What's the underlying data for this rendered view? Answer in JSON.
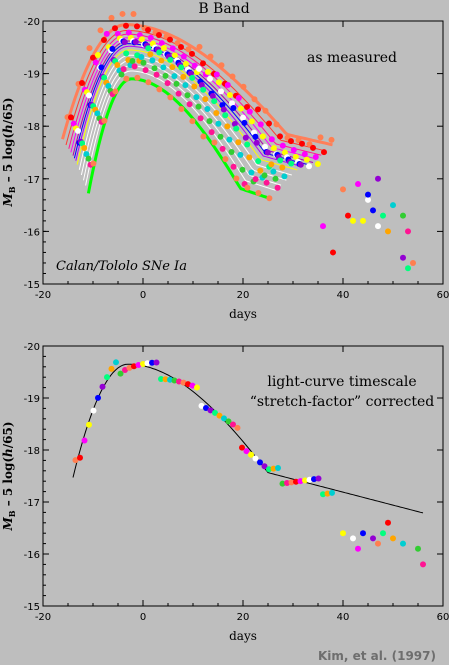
{
  "title": "B Band",
  "credit": "Kim, et al. (1997)",
  "colors": {
    "background": "#bebebe",
    "curve_colors": [
      "#ff7f5a",
      "#ff3b30",
      "#ff1493",
      "#ff00ff",
      "#b000b0",
      "#0000ff",
      "#b000ff",
      "#ffff00",
      "#ffffff",
      "#ffffff",
      "#ffffff",
      "#ffffff",
      "#00ff00"
    ],
    "point_colors": [
      "#ff7f50",
      "#ff0000",
      "#ff00ff",
      "#ffff00",
      "#ffffff",
      "#0000ff",
      "#9400d3",
      "#00ff7f",
      "#ffa500",
      "#00ced1",
      "#32cd32",
      "#ff1493"
    ]
  },
  "chart_data": [
    {
      "type": "scatter",
      "annotation_title": "as measured",
      "annotation_subtitle": "Calan/Tololo SNe Ia",
      "xlabel": "days",
      "ylabel": "M_B – 5 log(h/65)",
      "ylabel_parts": {
        "main": "M",
        "sub": "B",
        "rest": " – 5 log(",
        "h": "h",
        "tail": "/65)"
      },
      "xlim": [
        -20,
        60
      ],
      "ylim": [
        -15,
        -20
      ],
      "xticks": [
        -20,
        0,
        20,
        40,
        60
      ],
      "yticks": [
        -15,
        -16,
        -17,
        -18,
        -19,
        -20
      ],
      "xtick_labels": [
        "-20",
        "0",
        "20",
        "40",
        "60"
      ],
      "ytick_labels": [
        "-15",
        "-16",
        "-17",
        "-18",
        "-19",
        "-20"
      ],
      "curves": {
        "peaks": [
          -19.93,
          -19.82,
          -19.75,
          -19.68,
          -19.62,
          -19.57,
          -19.52,
          -19.45,
          -19.35,
          -19.25,
          -19.15,
          -19.05,
          -18.9
        ],
        "stretch": [
          1.15,
          1.1,
          1.06,
          1.03,
          1.0,
          0.98,
          0.96,
          0.94,
          0.91,
          0.88,
          0.85,
          0.82,
          0.78
        ],
        "end_day": [
          38,
          37,
          36,
          35,
          34,
          33,
          32,
          31,
          30,
          29,
          28,
          27,
          26
        ]
      },
      "late_points": [
        {
          "x": 40,
          "y": -16.8
        },
        {
          "x": 41,
          "y": -16.3
        },
        {
          "x": 43,
          "y": -16.9
        },
        {
          "x": 44,
          "y": -16.2
        },
        {
          "x": 45,
          "y": -16.6
        },
        {
          "x": 46,
          "y": -16.4
        },
        {
          "x": 47,
          "y": -17.0
        },
        {
          "x": 48,
          "y": -16.3
        },
        {
          "x": 49,
          "y": -16.0
        },
        {
          "x": 50,
          "y": -16.5
        },
        {
          "x": 52,
          "y": -16.3
        },
        {
          "x": 53,
          "y": -16.0
        },
        {
          "x": 54,
          "y": -15.4
        },
        {
          "x": 38,
          "y": -15.6
        },
        {
          "x": 36,
          "y": -16.1
        },
        {
          "x": 42,
          "y": -16.2
        },
        {
          "x": 47,
          "y": -16.1
        },
        {
          "x": 45,
          "y": -16.7
        },
        {
          "x": 52,
          "y": -15.5
        },
        {
          "x": 53,
          "y": -15.3
        }
      ]
    },
    {
      "type": "scatter",
      "annotation_title": "light-curve timescale",
      "annotation_subtitle": "“stretch-factor” corrected",
      "xlabel": "days",
      "ylabel": "M_B – 5 log(h/65)",
      "ylabel_parts": {
        "main": "M",
        "sub": "B",
        "rest": " – 5 log(",
        "h": "h",
        "tail": "/65)"
      },
      "xlim": [
        -20,
        60
      ],
      "ylim": [
        -15,
        -20
      ],
      "xticks": [
        -20,
        0,
        20,
        40,
        60
      ],
      "yticks": [
        -15,
        -16,
        -17,
        -18,
        -19,
        -20
      ],
      "xtick_labels": [
        "-20",
        "0",
        "20",
        "40",
        "60"
      ],
      "ytick_labels": [
        "-15",
        "-16",
        "-17",
        "-18",
        "-19",
        "-20"
      ],
      "template": {
        "peak": -19.65,
        "peak_day": -3,
        "start_day": -14,
        "end_day": 56
      },
      "late_points": [
        {
          "x": 40,
          "y": -16.4
        },
        {
          "x": 42,
          "y": -16.3
        },
        {
          "x": 44,
          "y": -16.4
        },
        {
          "x": 46,
          "y": -16.3
        },
        {
          "x": 48,
          "y": -16.4
        },
        {
          "x": 50,
          "y": -16.3
        },
        {
          "x": 52,
          "y": -16.2
        },
        {
          "x": 55,
          "y": -16.1
        },
        {
          "x": 56,
          "y": -15.8
        },
        {
          "x": 47,
          "y": -16.2
        },
        {
          "x": 49,
          "y": -16.6
        },
        {
          "x": 43,
          "y": -16.1
        }
      ]
    }
  ]
}
